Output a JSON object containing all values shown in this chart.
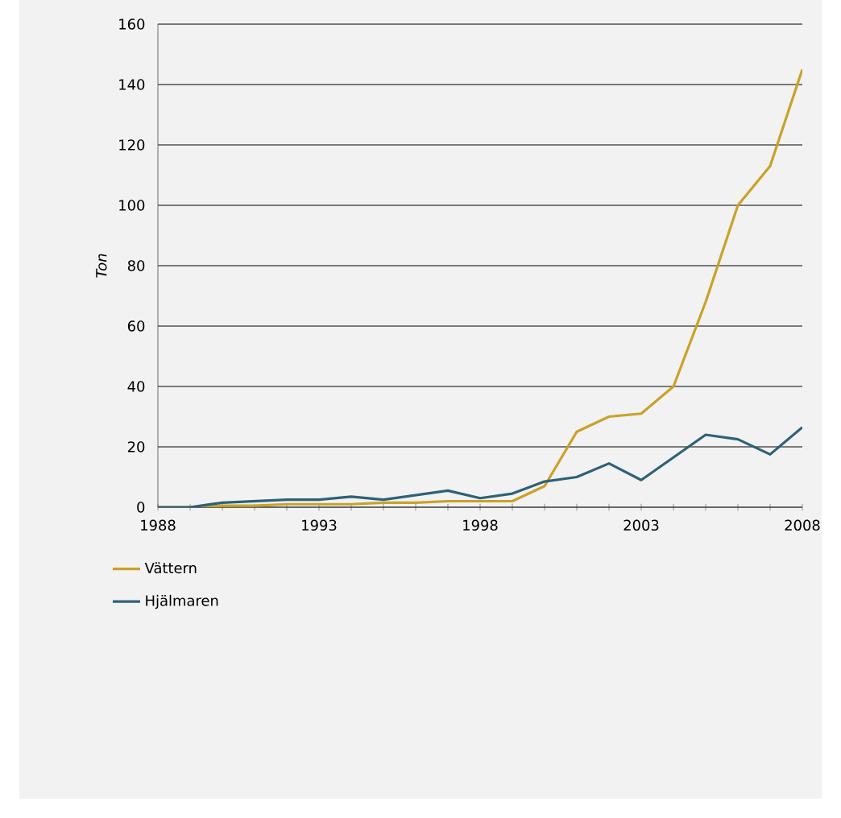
{
  "chart_data": {
    "type": "line",
    "ylabel": "Ton",
    "x": [
      1988,
      1989,
      1990,
      1991,
      1992,
      1993,
      1994,
      1995,
      1996,
      1997,
      1998,
      1999,
      2000,
      2001,
      2002,
      2003,
      2004,
      2005,
      2006,
      2007,
      2008
    ],
    "series": [
      {
        "name": "Vättern",
        "color": "#c9a227",
        "values": [
          0,
          0,
          0.5,
          0.5,
          1,
          1,
          1,
          1.5,
          1.5,
          2,
          2,
          2,
          7,
          25,
          30,
          31,
          40,
          68,
          100,
          113,
          145
        ]
      },
      {
        "name": "Hjälmaren",
        "color": "#2e6178",
        "values": [
          0,
          0,
          1.5,
          2,
          2.5,
          2.5,
          3.5,
          2.5,
          4,
          5.5,
          3,
          4.5,
          8.5,
          10,
          14.5,
          9,
          16.5,
          24,
          22.5,
          17.5,
          26.5
        ]
      }
    ],
    "xlim": [
      1988,
      2008
    ],
    "ylim": [
      0,
      160
    ],
    "xticks": [
      1988,
      {
        "value": 1989,
        "label": null
      },
      {
        "value": 1990,
        "label": null
      },
      {
        "value": 1991,
        "label": null
      },
      {
        "value": 1992,
        "label": null
      },
      1993,
      {
        "value": 1994,
        "label": null
      },
      {
        "value": 1995,
        "label": null
      },
      {
        "value": 1996,
        "label": null
      },
      {
        "value": 1997,
        "label": null
      },
      1998,
      {
        "value": 1999,
        "label": null
      },
      {
        "value": 2000,
        "label": null
      },
      {
        "value": 2001,
        "label": null
      },
      {
        "value": 2002,
        "label": null
      },
      2003,
      {
        "value": 2004,
        "label": null
      },
      {
        "value": 2005,
        "label": null
      },
      {
        "value": 2006,
        "label": null
      },
      {
        "value": 2007,
        "label": null
      },
      2008
    ],
    "yticks": [
      0,
      20,
      40,
      60,
      80,
      100,
      120,
      140,
      160
    ],
    "grid": "y",
    "legend": "bottom",
    "marker": "none",
    "line_style": "solid"
  }
}
